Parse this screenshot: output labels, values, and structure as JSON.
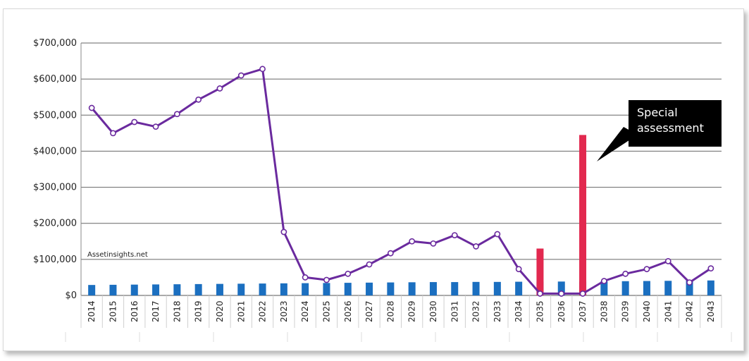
{
  "watermark": "Assetinsights.net",
  "annotation": {
    "line1": "Special",
    "line2": "assessment"
  },
  "colors": {
    "line": "#6a2a9e",
    "contribution_bar": "#1b6fc0",
    "special_bar": "#e2294f",
    "grid": "#666666",
    "callout_bg": "#000000"
  },
  "chart_data": {
    "type": "bar",
    "overlay": "line",
    "title": "",
    "xlabel": "",
    "ylabel": "",
    "ylim": [
      0,
      700000
    ],
    "yticks": [
      0,
      100000,
      200000,
      300000,
      400000,
      500000,
      600000,
      700000
    ],
    "ytick_labels": [
      "$0",
      "$100,000",
      "$200,000",
      "$300,000",
      "$400,000",
      "$500,000",
      "$600,000",
      "$700,000"
    ],
    "grid": true,
    "legend": "none",
    "categories": [
      "2014",
      "2015",
      "2016",
      "2017",
      "2018",
      "2019",
      "2020",
      "2021",
      "2022",
      "2023",
      "2024",
      "2025",
      "2026",
      "2027",
      "2028",
      "2029",
      "2030",
      "2031",
      "2032",
      "2033",
      "2034",
      "2035",
      "2036",
      "2037",
      "2038",
      "2039",
      "2040",
      "2041",
      "2042",
      "2043"
    ],
    "series": [
      {
        "type": "bar",
        "color": "#1b6fc0",
        "values": [
          29000,
          29500,
          30000,
          30500,
          31000,
          31500,
          32000,
          32500,
          33000,
          33500,
          34000,
          34500,
          35000,
          35500,
          36000,
          36500,
          37000,
          37000,
          37500,
          37500,
          38000,
          38000,
          38500,
          38500,
          39000,
          39500,
          40000,
          40500,
          41000,
          41500
        ]
      },
      {
        "type": "bar",
        "color": "#e2294f",
        "values": [
          null,
          null,
          null,
          null,
          null,
          null,
          null,
          null,
          null,
          null,
          null,
          null,
          null,
          null,
          null,
          null,
          null,
          null,
          null,
          null,
          null,
          130000,
          null,
          445000,
          null,
          null,
          null,
          null,
          null,
          null
        ]
      },
      {
        "type": "line",
        "color": "#6a2a9e",
        "values": [
          520000,
          450000,
          481000,
          468000,
          503000,
          543000,
          574000,
          610000,
          628000,
          176000,
          50000,
          43000,
          60000,
          86000,
          117000,
          150000,
          144000,
          167000,
          136000,
          170000,
          73000,
          5000,
          5000,
          5000,
          40000,
          60000,
          73000,
          95000,
          36000,
          75000
        ]
      }
    ]
  }
}
